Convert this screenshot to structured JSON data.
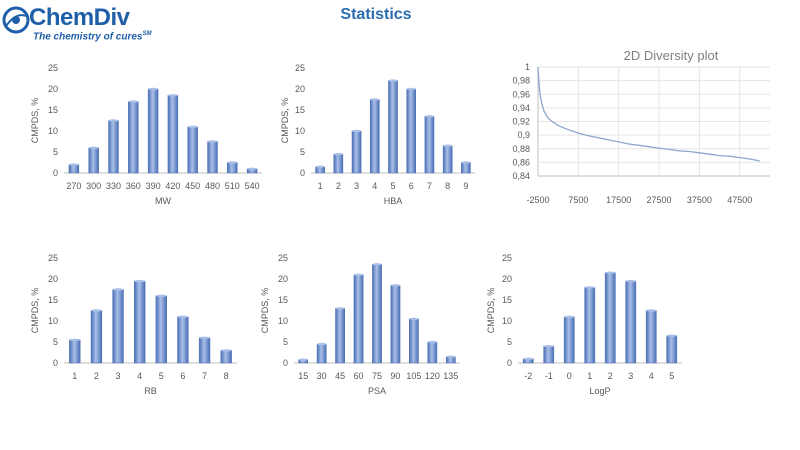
{
  "logo": {
    "name": "ChemDiv",
    "tagline": "The chemistry of cures",
    "tagline_mark": "SM"
  },
  "page": {
    "title": "Statistics"
  },
  "colors": {
    "bar": "#6f8fcf",
    "bar_dark": "#4a6fb5",
    "bar_light": "#a9bfe8",
    "axis": "#bfbfbf",
    "text": "#595959",
    "curve": "#8ea7cc"
  },
  "chart_data": [
    {
      "id": "mw",
      "type": "bar",
      "title": "",
      "xlabel": "MW",
      "ylabel": "CMPDS, %",
      "categories": [
        "270",
        "300",
        "330",
        "360",
        "390",
        "420",
        "450",
        "480",
        "510",
        "540"
      ],
      "values": [
        2,
        6,
        12.5,
        17,
        20,
        18.5,
        11,
        7.5,
        2.5,
        1
      ],
      "ylim": [
        0,
        25
      ],
      "yticks": [
        0,
        5,
        10,
        15,
        20,
        25
      ]
    },
    {
      "id": "hba",
      "type": "bar",
      "title": "",
      "xlabel": "HBA",
      "ylabel": "CMPDS, %",
      "categories": [
        "1",
        "2",
        "3",
        "4",
        "5",
        "6",
        "7",
        "8",
        "9"
      ],
      "values": [
        1.5,
        4.5,
        10,
        17.5,
        22,
        20,
        13.5,
        6.5,
        2.5
      ],
      "ylim": [
        0,
        25
      ],
      "yticks": [
        0,
        5,
        10,
        15,
        20,
        25
      ]
    },
    {
      "id": "diversity",
      "type": "line",
      "title": "2D Diversity plot",
      "xlabel": "",
      "ylabel": "",
      "x": [
        -2500,
        -2300,
        -2000,
        -1500,
        -1000,
        0,
        1000,
        2500,
        5000,
        7500,
        10000,
        12500,
        15000,
        17500,
        20000,
        22500,
        25000,
        27500,
        30000,
        32500,
        35000,
        37500,
        40000,
        42500,
        45000,
        47500,
        50000,
        52500
      ],
      "y": [
        1.0,
        0.98,
        0.96,
        0.945,
        0.935,
        0.925,
        0.92,
        0.914,
        0.908,
        0.903,
        0.899,
        0.896,
        0.893,
        0.89,
        0.887,
        0.885,
        0.883,
        0.881,
        0.879,
        0.877,
        0.876,
        0.874,
        0.872,
        0.87,
        0.869,
        0.867,
        0.865,
        0.862
      ],
      "xlim": [
        -2500,
        55000
      ],
      "ylim": [
        0.84,
        1.0
      ],
      "xticks": [
        "-2500",
        "7500",
        "17500",
        "27500",
        "37500",
        "47500"
      ],
      "xtick_values": [
        -2500,
        7500,
        17500,
        27500,
        37500,
        47500
      ],
      "yticks": [
        "0,84",
        "0,86",
        "0,88",
        "0,9",
        "0,92",
        "0,94",
        "0,96",
        "0,98",
        "1"
      ],
      "ytick_values": [
        0.84,
        0.86,
        0.88,
        0.9,
        0.92,
        0.94,
        0.96,
        0.98,
        1.0
      ],
      "grid": true
    },
    {
      "id": "rb",
      "type": "bar",
      "title": "",
      "xlabel": "RB",
      "ylabel": "CMPDS, %",
      "categories": [
        "1",
        "2",
        "3",
        "4",
        "5",
        "6",
        "7",
        "8"
      ],
      "values": [
        5.5,
        12.5,
        17.5,
        19.5,
        16,
        11,
        6,
        3
      ],
      "ylim": [
        0,
        25
      ],
      "yticks": [
        0,
        5,
        10,
        15,
        20,
        25
      ]
    },
    {
      "id": "psa",
      "type": "bar",
      "title": "",
      "xlabel": "PSA",
      "ylabel": "CMPDS, %",
      "categories": [
        "15",
        "30",
        "45",
        "60",
        "75",
        "90",
        "105",
        "120",
        "135"
      ],
      "values": [
        0.8,
        4.5,
        13,
        21,
        23.5,
        18.5,
        10.5,
        5,
        1.5
      ],
      "ylim": [
        0,
        25
      ],
      "yticks": [
        0,
        5,
        10,
        15,
        20,
        25
      ]
    },
    {
      "id": "logp",
      "type": "bar",
      "title": "",
      "xlabel": "LogP",
      "ylabel": "CMPDS, %",
      "categories": [
        "-2",
        "-1",
        "0",
        "1",
        "2",
        "3",
        "4",
        "5"
      ],
      "values": [
        1,
        4,
        11,
        18,
        21.5,
        19.5,
        12.5,
        6.5
      ],
      "ylim": [
        0,
        25
      ],
      "yticks": [
        0,
        5,
        10,
        15,
        20,
        25
      ]
    }
  ]
}
